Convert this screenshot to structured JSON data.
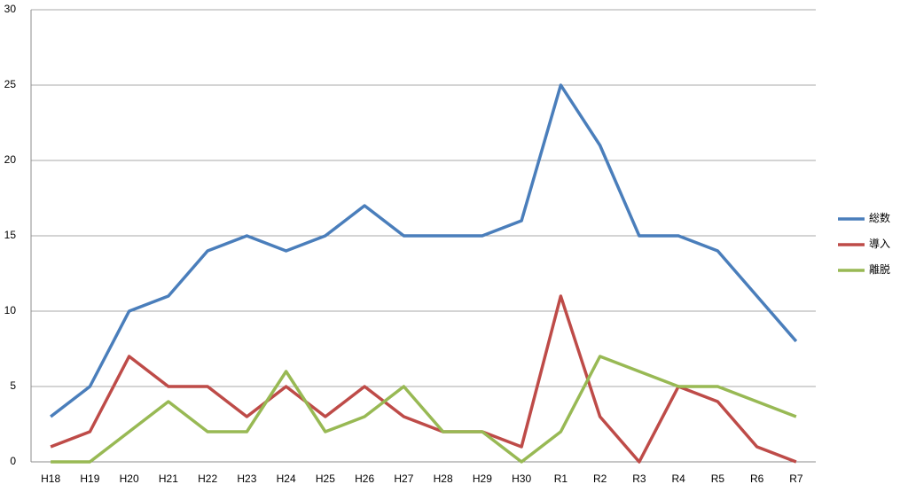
{
  "chart_data": {
    "type": "line",
    "categories": [
      "H18",
      "H19",
      "H20",
      "H21",
      "H22",
      "H23",
      "H24",
      "H25",
      "H26",
      "H27",
      "H28",
      "H29",
      "H30",
      "R1",
      "R2",
      "R3",
      "R4",
      "R5",
      "R6",
      "R7"
    ],
    "series": [
      {
        "name": "総数",
        "color": "#4a7ebb",
        "values": [
          3,
          5,
          10,
          11,
          14,
          15,
          14,
          15,
          17,
          15,
          15,
          15,
          16,
          25,
          21,
          15,
          15,
          14,
          11,
          8
        ]
      },
      {
        "name": "導入",
        "color": "#be4b48",
        "values": [
          1,
          2,
          7,
          5,
          5,
          3,
          5,
          3,
          5,
          3,
          2,
          2,
          1,
          11,
          3,
          0,
          5,
          4,
          1,
          0
        ]
      },
      {
        "name": "離脱",
        "color": "#98b954",
        "values": [
          0,
          0,
          2,
          4,
          2,
          2,
          6,
          2,
          3,
          5,
          2,
          2,
          0,
          2,
          7,
          6,
          5,
          5,
          4,
          3
        ]
      }
    ],
    "ylim": [
      0,
      30
    ],
    "yticks": [
      0,
      5,
      10,
      15,
      20,
      25,
      30
    ],
    "grid": true,
    "legend": "right"
  }
}
